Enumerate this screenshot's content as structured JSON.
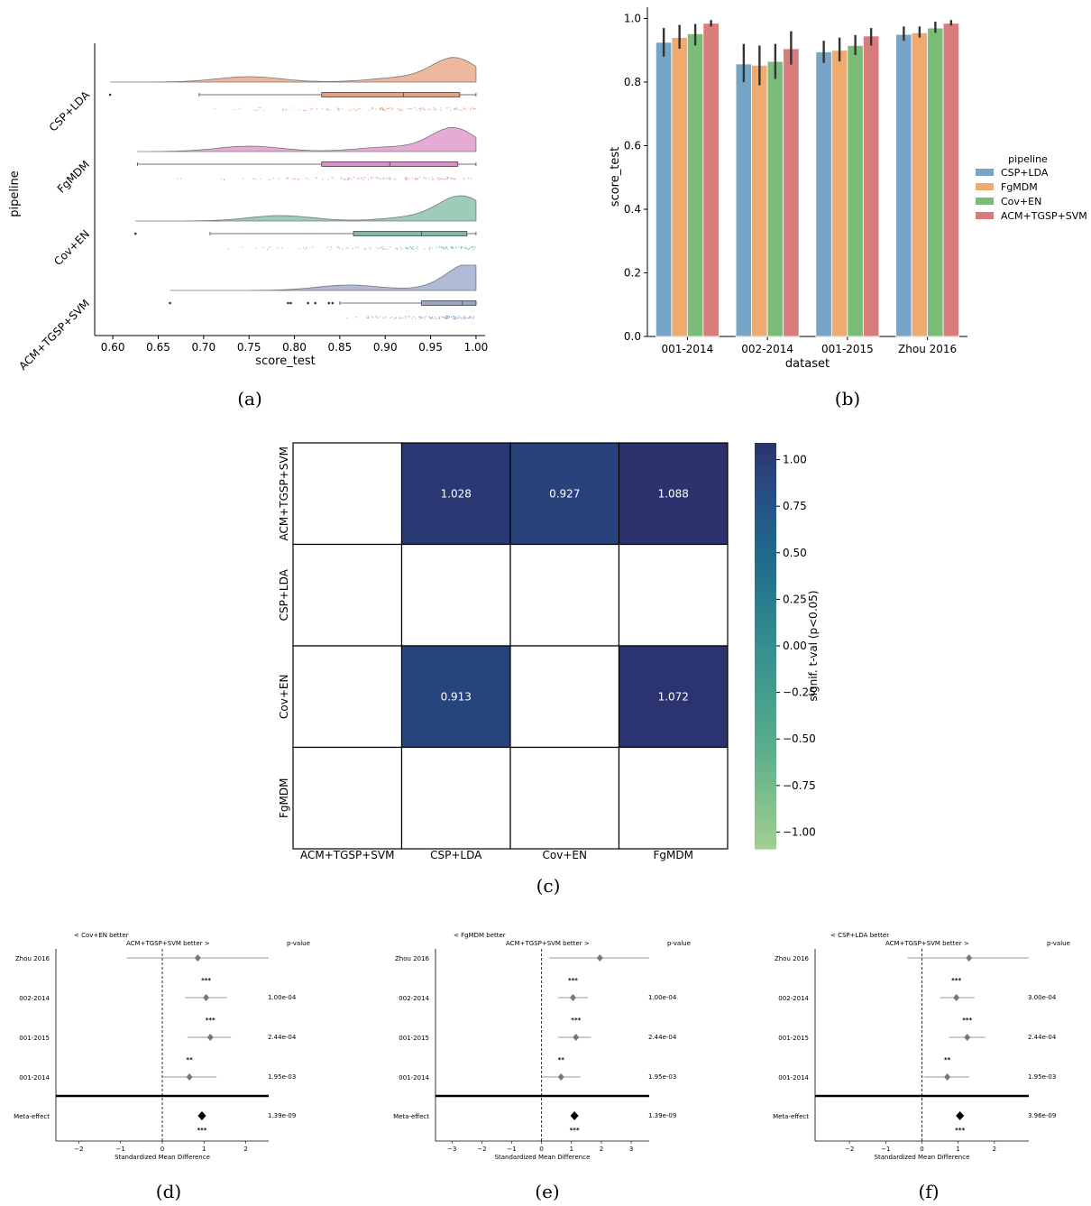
{
  "chart_data": [
    {
      "panel": "(a)",
      "type": "raincloud",
      "ylabel": "pipeline",
      "xlabel": "score_test",
      "xlim": [
        0.58,
        1.01
      ],
      "xticks": [
        "0.60",
        "0.65",
        "0.70",
        "0.75",
        "0.80",
        "0.85",
        "0.90",
        "0.95",
        "1.00"
      ],
      "xtick_values": [
        0.6,
        0.65,
        0.7,
        0.75,
        0.8,
        0.85,
        0.9,
        0.95,
        1.0
      ],
      "groups": [
        {
          "name": "CSP+LDA",
          "color": "#e8a07e",
          "min": 0.695,
          "q1": 0.83,
          "median": 0.92,
          "q3": 0.982,
          "max": 1.0,
          "kde_start": 0.597,
          "outliers": [
            0.597
          ]
        },
        {
          "name": "FgMDM",
          "color": "#dc8fc6",
          "min": 0.627,
          "q1": 0.83,
          "median": 0.905,
          "q3": 0.98,
          "max": 1.0,
          "kde_start": 0.627,
          "outliers": []
        },
        {
          "name": "Cov+EN",
          "color": "#7ebc9f",
          "min": 0.707,
          "q1": 0.865,
          "median": 0.94,
          "q3": 0.99,
          "max": 1.0,
          "kde_start": 0.625,
          "outliers": [
            0.625
          ]
        },
        {
          "name": "ACM+TGSP+SVM",
          "color": "#97a3c8",
          "min": 0.85,
          "q1": 0.94,
          "median": 0.985,
          "q3": 1.0,
          "max": 1.0,
          "kde_start": 0.663,
          "outliers": [
            0.663,
            0.793,
            0.796,
            0.815,
            0.823,
            0.838,
            0.842
          ]
        }
      ]
    },
    {
      "panel": "(b)",
      "type": "bar",
      "xlabel": "dataset",
      "ylabel": "score_test",
      "ylim": [
        0,
        1.0
      ],
      "yticks": [
        "0.0",
        "0.2",
        "0.4",
        "0.6",
        "0.8",
        "1.0"
      ],
      "ytick_values": [
        0,
        0.2,
        0.4,
        0.6,
        0.8,
        1.0
      ],
      "categories": [
        "001-2014",
        "002-2014",
        "001-2015",
        "Zhou 2016"
      ],
      "legend_title": "pipeline",
      "legend_position": "right",
      "series": [
        {
          "name": "CSP+LDA",
          "color": "#77a5c8",
          "values": [
            0.925,
            0.857,
            0.895,
            0.95
          ],
          "err_low": [
            0.88,
            0.8,
            0.86,
            0.93
          ],
          "err_high": [
            0.97,
            0.92,
            0.93,
            0.975
          ]
        },
        {
          "name": "FgMDM",
          "color": "#eeaa6f",
          "values": [
            0.94,
            0.853,
            0.9,
            0.955
          ],
          "err_low": [
            0.905,
            0.79,
            0.865,
            0.94
          ],
          "err_high": [
            0.98,
            0.915,
            0.94,
            0.975
          ]
        },
        {
          "name": "Cov+EN",
          "color": "#7bbd78",
          "values": [
            0.952,
            0.865,
            0.915,
            0.97
          ],
          "err_low": [
            0.915,
            0.81,
            0.885,
            0.955
          ],
          "err_high": [
            0.983,
            0.92,
            0.948,
            0.99
          ]
        },
        {
          "name": "ACM+TGSP+SVM",
          "color": "#d97c7c",
          "values": [
            0.985,
            0.905,
            0.945,
            0.985
          ],
          "err_low": [
            0.975,
            0.855,
            0.915,
            0.978
          ],
          "err_high": [
            0.995,
            0.96,
            0.97,
            0.995
          ]
        }
      ]
    },
    {
      "panel": "(c)",
      "type": "heatmap",
      "rows": [
        "ACM+TGSP+SVM",
        "CSP+LDA",
        "Cov+EN",
        "FgMDM"
      ],
      "cols": [
        "ACM+TGSP+SVM",
        "CSP+LDA",
        "Cov+EN",
        "FgMDM"
      ],
      "values": [
        [
          null,
          1.028,
          0.927,
          1.088
        ],
        [
          null,
          null,
          null,
          null
        ],
        [
          null,
          0.913,
          null,
          1.072
        ],
        [
          null,
          null,
          null,
          null
        ]
      ],
      "labels": [
        [
          "",
          "1.028",
          "0.927",
          "1.088"
        ],
        [
          "",
          "",
          "",
          ""
        ],
        [
          "",
          "0.913",
          "",
          "1.072"
        ],
        [
          "",
          "",
          "",
          ""
        ]
      ],
      "colorbar_label": "signif. t-val (p<0.05)",
      "colorbar_range": [
        -1.09,
        1.09
      ],
      "colorbar_ticks": [
        "1.00",
        "0.75",
        "0.50",
        "0.25",
        "0.00",
        "−0.25",
        "−0.50",
        "−0.75",
        "−1.00"
      ],
      "colorbar_tick_values": [
        1.0,
        0.75,
        0.5,
        0.25,
        0.0,
        -0.25,
        -0.5,
        -0.75,
        -1.0
      ]
    },
    {
      "panel": "(d)",
      "type": "forest",
      "left_label": "< Cov+EN better",
      "right_label": "ACM+TGSP+SVM better >",
      "pvalue_header": "p-value",
      "xlabel": "Standardized Mean Difference",
      "xlim": [
        -2.55,
        2.55
      ],
      "xticks": [
        "−2",
        "−1",
        "0",
        "1",
        "2"
      ],
      "xtick_values": [
        -2,
        -1,
        0,
        1,
        2
      ],
      "rows": [
        {
          "name": "Zhou 2016",
          "effect": 0.85,
          "ci": [
            -0.85,
            2.55
          ],
          "pvalue": "",
          "stars": ""
        },
        {
          "name": "002-2014",
          "effect": 1.05,
          "ci": [
            0.55,
            1.55
          ],
          "pvalue": "1.00e-04",
          "stars": "***"
        },
        {
          "name": "001-2015",
          "effect": 1.15,
          "ci": [
            0.6,
            1.65
          ],
          "pvalue": "2.44e-04",
          "stars": "***"
        },
        {
          "name": "001-2014",
          "effect": 0.65,
          "ci": [
            0.0,
            1.3
          ],
          "pvalue": "1.95e-03",
          "stars": "**"
        }
      ],
      "meta": {
        "name": "Meta-effect",
        "effect": 0.95,
        "pvalue": "1.39e-09",
        "stars": "***"
      }
    },
    {
      "panel": "(e)",
      "type": "forest",
      "left_label": "< FgMDM better",
      "right_label": "ACM+TGSP+SVM better >",
      "pvalue_header": "p-value",
      "xlabel": "Standardized Mean Difference",
      "xlim": [
        -3.55,
        3.6
      ],
      "xticks": [
        "−3",
        "−2",
        "−1",
        "0",
        "1",
        "2",
        "3"
      ],
      "xtick_values": [
        -3,
        -2,
        -1,
        0,
        1,
        2,
        3
      ],
      "rows": [
        {
          "name": "Zhou 2016",
          "effect": 1.95,
          "ci": [
            0.25,
            3.6
          ],
          "pvalue": "",
          "stars": ""
        },
        {
          "name": "002-2014",
          "effect": 1.05,
          "ci": [
            0.55,
            1.55
          ],
          "pvalue": "1.00e-04",
          "stars": "***"
        },
        {
          "name": "001-2015",
          "effect": 1.15,
          "ci": [
            0.55,
            1.65
          ],
          "pvalue": "2.44e-04",
          "stars": "***"
        },
        {
          "name": "001-2014",
          "effect": 0.65,
          "ci": [
            0.0,
            1.3
          ],
          "pvalue": "1.95e-03",
          "stars": "**"
        }
      ],
      "meta": {
        "name": "Meta-effect",
        "effect": 1.1,
        "pvalue": "1.39e-09",
        "stars": "***"
      }
    },
    {
      "panel": "(f)",
      "type": "forest",
      "left_label": "< CSP+LDA better",
      "right_label": "ACM+TGSP+SVM better >",
      "pvalue_header": "p-value",
      "xlabel": "Standardized Mean Difference",
      "xlim": [
        -2.95,
        2.95
      ],
      "xticks": [
        "−2",
        "−1",
        "0",
        "1",
        "2"
      ],
      "xtick_values": [
        -2,
        -1,
        0,
        1,
        2
      ],
      "rows": [
        {
          "name": "Zhou 2016",
          "effect": 1.3,
          "ci": [
            -0.4,
            2.95
          ],
          "pvalue": "",
          "stars": ""
        },
        {
          "name": "002-2014",
          "effect": 0.95,
          "ci": [
            0.5,
            1.45
          ],
          "pvalue": "3.00e-04",
          "stars": "***"
        },
        {
          "name": "001-2015",
          "effect": 1.25,
          "ci": [
            0.75,
            1.75
          ],
          "pvalue": "2.44e-04",
          "stars": "***"
        },
        {
          "name": "001-2014",
          "effect": 0.7,
          "ci": [
            0.05,
            1.3
          ],
          "pvalue": "1.95e-03",
          "stars": "**"
        }
      ],
      "meta": {
        "name": "Meta-effect",
        "effect": 1.05,
        "pvalue": "3.96e-09",
        "stars": "***"
      }
    }
  ],
  "panel_labels": [
    "(a)",
    "(b)",
    "(c)",
    "(d)",
    "(e)",
    "(f)"
  ]
}
